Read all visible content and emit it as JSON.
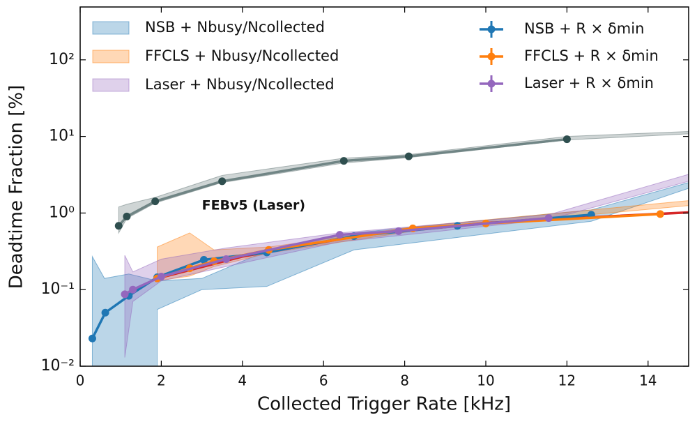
{
  "chart_data": {
    "type": "line",
    "xlabel": "Collected Trigger Rate [kHz]",
    "ylabel": "Deadtime Fraction [%]",
    "xlim": [
      0,
      15
    ],
    "xticks": [
      0,
      2,
      4,
      6,
      8,
      10,
      12,
      14
    ],
    "ylim": [
      0.01,
      490
    ],
    "log_y": true,
    "yticks": [
      {
        "value": 0.01,
        "label": "10⁻²"
      },
      {
        "value": 0.1,
        "label": "10⁻¹"
      },
      {
        "value": 1,
        "label": "10⁰"
      },
      {
        "value": 10,
        "label": "10¹"
      },
      {
        "value": 100,
        "label": "10²"
      }
    ],
    "bands": [
      {
        "name": "NSB + Nbusy/Ncollected",
        "color": "#1f77b4",
        "x": [
          0.3,
          0.6,
          1.2,
          1.9,
          1.9,
          3,
          4.6,
          6.75,
          12.6,
          15
        ],
        "lower": [
          0.01,
          0.01,
          0.01,
          0.01,
          0.055,
          0.1,
          0.11,
          0.33,
          0.78,
          2.1
        ],
        "upper": [
          0.27,
          0.14,
          0.16,
          0.13,
          0.13,
          0.14,
          0.32,
          0.55,
          1.1,
          2.5
        ]
      },
      {
        "name": "FFCLS + Nbusy/Ncollected",
        "color": "#ff7f0e",
        "x": [
          1.9,
          2.7,
          3.3,
          4.65,
          8.2,
          15
        ],
        "lower": [
          0.13,
          0.15,
          0.2,
          0.3,
          0.58,
          1.25
        ],
        "upper": [
          0.36,
          0.55,
          0.33,
          0.36,
          0.66,
          1.45
        ]
      },
      {
        "name": "Laser + Nbusy/Ncollected",
        "color": "#9467bd",
        "x": [
          1.1,
          1.3,
          2,
          3.6,
          6.4,
          11.55,
          15
        ],
        "lower": [
          0.013,
          0.07,
          0.13,
          0.2,
          0.42,
          0.82,
          2.6
        ],
        "upper": [
          0.28,
          0.17,
          0.25,
          0.35,
          0.55,
          0.95,
          3.2
        ]
      },
      {
        "color": "#5f7373",
        "x": [
          0.95,
          1.15,
          1.85,
          3.5,
          6.5,
          8.1,
          12,
          15
        ],
        "lower": [
          0.55,
          0.85,
          1.35,
          2.5,
          4.5,
          5.3,
          9,
          10.8
        ],
        "upper": [
          1.2,
          1.3,
          1.6,
          3.1,
          5.2,
          5.8,
          10,
          11.6
        ]
      }
    ],
    "series": [
      {
        "color": "#d62728",
        "marker": false,
        "x": [
          1.9,
          4,
          7,
          10,
          12.6,
          15
        ],
        "values": [
          0.14,
          0.27,
          0.52,
          0.74,
          0.88,
          1.02
        ]
      },
      {
        "name": "NSB + R × δmin",
        "color": "#1f77b4",
        "marker": true,
        "x": [
          0.3,
          0.62,
          1.2,
          1.9,
          3.05,
          4.6,
          6.75,
          9.3,
          12.6
        ],
        "values": [
          0.023,
          0.05,
          0.083,
          0.145,
          0.245,
          0.305,
          0.5,
          0.68,
          0.95
        ]
      },
      {
        "name": "FFCLS + R × δmin",
        "color": "#ff7f0e",
        "marker": true,
        "x": [
          1.9,
          2.7,
          3.3,
          4.65,
          8.2,
          10,
          14.3
        ],
        "values": [
          0.14,
          0.19,
          0.235,
          0.33,
          0.63,
          0.73,
          0.97
        ]
      },
      {
        "name": "Laser + R × δmin",
        "color": "#9467bd",
        "marker": true,
        "x": [
          1.1,
          1.3,
          2,
          3.6,
          6.4,
          7.85,
          11.55
        ],
        "values": [
          0.087,
          0.1,
          0.148,
          0.25,
          0.52,
          0.58,
          0.86
        ]
      },
      {
        "color": "#2f4f4f",
        "line_color": "#708585",
        "marker": true,
        "x": [
          0.95,
          1.15,
          1.85,
          3.5,
          6.5,
          8.1,
          12
        ],
        "values": [
          0.68,
          0.9,
          1.42,
          2.6,
          4.8,
          5.5,
          9.2
        ]
      }
    ],
    "annotations": [
      {
        "text": "FEBv5 (Laser)",
        "x": 3,
        "y": 1.25,
        "color": "#2f4f4f"
      }
    ]
  }
}
